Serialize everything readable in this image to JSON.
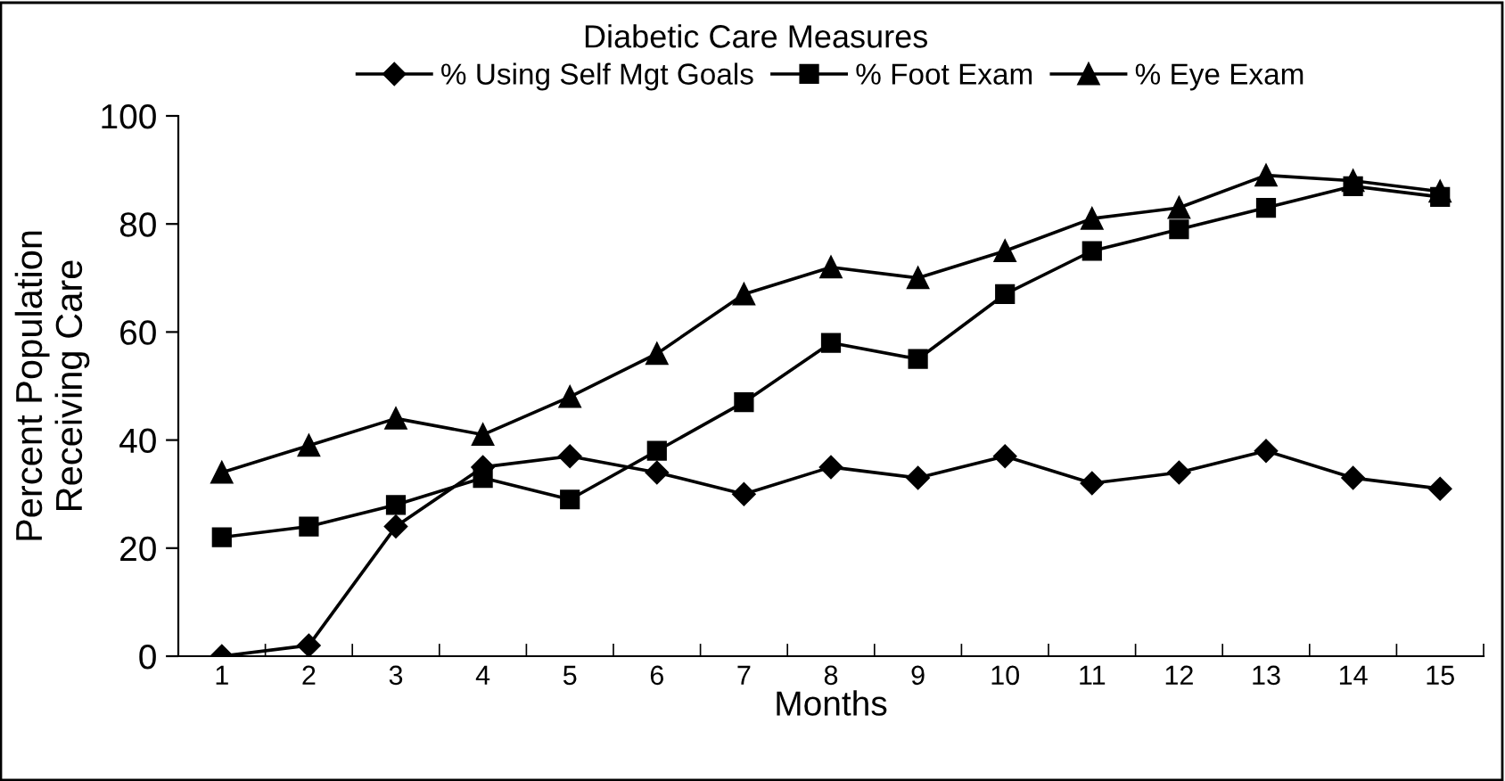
{
  "chart_data": {
    "type": "line",
    "title": "Diabetic Care Measures",
    "xlabel": "Months",
    "ylabel": "Percent Population\nReceiving Care",
    "categories": [
      "1",
      "2",
      "3",
      "4",
      "5",
      "6",
      "7",
      "8",
      "9",
      "10",
      "11",
      "12",
      "13",
      "14",
      "15"
    ],
    "series": [
      {
        "name": "% Using Self Mgt Goals",
        "color": "#000000",
        "marker": "diamond",
        "values": [
          0,
          2,
          24,
          35,
          37,
          34,
          30,
          35,
          33,
          37,
          32,
          34,
          38,
          33,
          31
        ]
      },
      {
        "name": "% Foot Exam",
        "color": "#000000",
        "marker": "square",
        "values": [
          22,
          24,
          28,
          33,
          29,
          38,
          47,
          58,
          55,
          67,
          75,
          79,
          83,
          87,
          85
        ]
      },
      {
        "name": "% Eye Exam",
        "color": "#000000",
        "marker": "triangle",
        "values": [
          34,
          39,
          44,
          41,
          48,
          56,
          67,
          72,
          70,
          75,
          81,
          83,
          89,
          88,
          86
        ]
      }
    ],
    "ylim": [
      0,
      100
    ],
    "yticks": [
      0,
      20,
      40,
      60,
      80,
      100
    ],
    "grid": false,
    "legend": "top",
    "line_style": "solid"
  }
}
